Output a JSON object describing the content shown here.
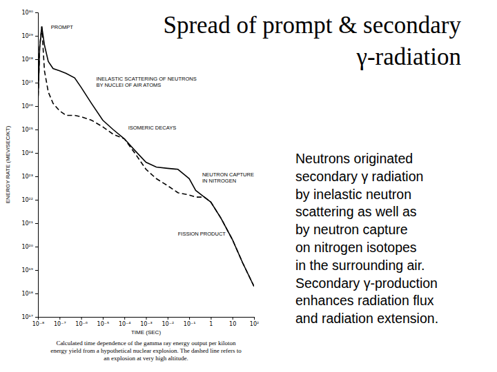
{
  "slide": {
    "title": [
      "Spread of prompt & secondary",
      "γ-radiation"
    ],
    "text": [
      "Neutrons originated",
      "secondary γ radiation",
      "by inelastic neutron",
      "scattering as well as",
      "by neutron capture",
      "on nitrogen isotopes",
      "in the surrounding air.",
      "Secondary γ-production",
      "enhances radiation flux",
      "and radiation extension."
    ]
  },
  "chart_data": {
    "type": "line",
    "log": true,
    "grid": false,
    "xlabel": "TIME (SEC)",
    "ylabel": "ENERGY RATE (MEV/SEC/KT)",
    "caption": [
      "Calculated time dependence of the gamma ray energy output per kiloton",
      "energy yield from a hypothetical nuclear explosion.  The dashed line refers to",
      "an explosion at very high altitude."
    ],
    "xlim": [
      1e-08,
      100
    ],
    "ylim": [
      1e+17,
      1e+30
    ],
    "xticks": [
      {
        "value": 1e-08,
        "label": "10⁻⁸"
      },
      {
        "value": 1e-07,
        "label": "10⁻⁷"
      },
      {
        "value": 1e-06,
        "label": "10⁻⁶"
      },
      {
        "value": 1e-05,
        "label": "10⁻⁵"
      },
      {
        "value": 0.0001,
        "label": "10⁻⁴"
      },
      {
        "value": 0.001,
        "label": "10⁻³"
      },
      {
        "value": 0.01,
        "label": "10⁻²"
      },
      {
        "value": 0.1,
        "label": "10⁻¹"
      },
      1,
      10,
      {
        "value": 100,
        "label": "10²"
      }
    ],
    "yticks": [
      {
        "value": 1e+17,
        "label": "10¹⁷"
      },
      {
        "value": 1e+18,
        "label": "10¹⁸"
      },
      {
        "value": 1e+19,
        "label": "10¹⁹"
      },
      {
        "value": 1e+20,
        "label": "10²⁰"
      },
      {
        "value": 1e+21,
        "label": "10²¹"
      },
      {
        "value": 1e+22,
        "label": "10²²"
      },
      {
        "value": 1e+23,
        "label": "10²³"
      },
      {
        "value": 1e+24,
        "label": "10²⁴"
      },
      {
        "value": 1e+25,
        "label": "10²⁵"
      },
      {
        "value": 1e+26,
        "label": "10²⁶"
      },
      {
        "value": 1e+27,
        "label": "10²⁷"
      },
      {
        "value": 1e+28,
        "label": "10²⁸"
      },
      {
        "value": 1e+29,
        "label": "10²⁹"
      },
      {
        "value": 1e+30,
        "label": "10³⁰"
      }
    ],
    "x": [
      1e-08,
      1.2e-08,
      1.5e-08,
      2e-08,
      3e-08,
      5e-08,
      1e-07,
      2e-07,
      5e-07,
      1e-06,
      3e-06,
      1e-05,
      3e-05,
      0.0001,
      0.0003,
      0.001,
      0.003,
      0.01,
      0.03,
      0.1,
      0.2,
      0.5,
      1,
      3,
      10,
      30,
      100
    ],
    "series": [
      {
        "color": "#000000",
        "line_style": "solid",
        "values": [
          1.3e+26,
          3.2e+28,
          2.5e+29,
          4e+28,
          8e+27,
          4e+27,
          3.2e+27,
          2.5e+27,
          1.6e+27,
          6.3e+26,
          1.3e+26,
          2.5e+25,
          1e+25,
          4e+24,
          1.3e+24,
          4e+23,
          2.5e+23,
          2.2e+23,
          2e+23,
          8e+22,
          2.5e+22,
          1.3e+22,
          8e+21,
          1.6e+21,
          2e+20,
          2e+19,
          2e+18
        ]
      },
      {
        "color": "#000000",
        "line_style": "dashed",
        "values": [
          1.3e+26,
          3.2e+28,
          2.5e+29,
          3.2e+27,
          4e+26,
          1.3e+26,
          6.3e+25,
          4e+25,
          4e+25,
          3.5e+25,
          2.5e+25,
          1.3e+25,
          6.3e+24,
          4e+24,
          1e+24,
          2e+23,
          8e+22,
          4e+22,
          2e+22,
          1.6e+22,
          1.3e+22,
          1.3e+22,
          8e+21,
          1.6e+21,
          2e+20,
          2e+19,
          2e+18
        ]
      }
    ],
    "annotations": [
      {
        "text": [
          "PROMPT"
        ],
        "x": 4e-08,
        "y": 2e+29
      },
      {
        "text": [
          "INELASTIC SCATTERING OF NEUTRONS",
          "BY NUCLEI OF AIR ATOMS"
        ],
        "x": 5e-06,
        "y": 1.2e+27
      },
      {
        "text": [
          "ISOMERIC DECAYS"
        ],
        "x": 0.00015,
        "y": 1e+25
      },
      {
        "text": [
          "NEUTRON CAPTURE",
          "IN NITROGEN"
        ],
        "x": 0.4,
        "y": 1e+23
      },
      {
        "text": [
          "FISSION PRODUCT"
        ],
        "x": 0.03,
        "y": 3e+20
      }
    ]
  }
}
